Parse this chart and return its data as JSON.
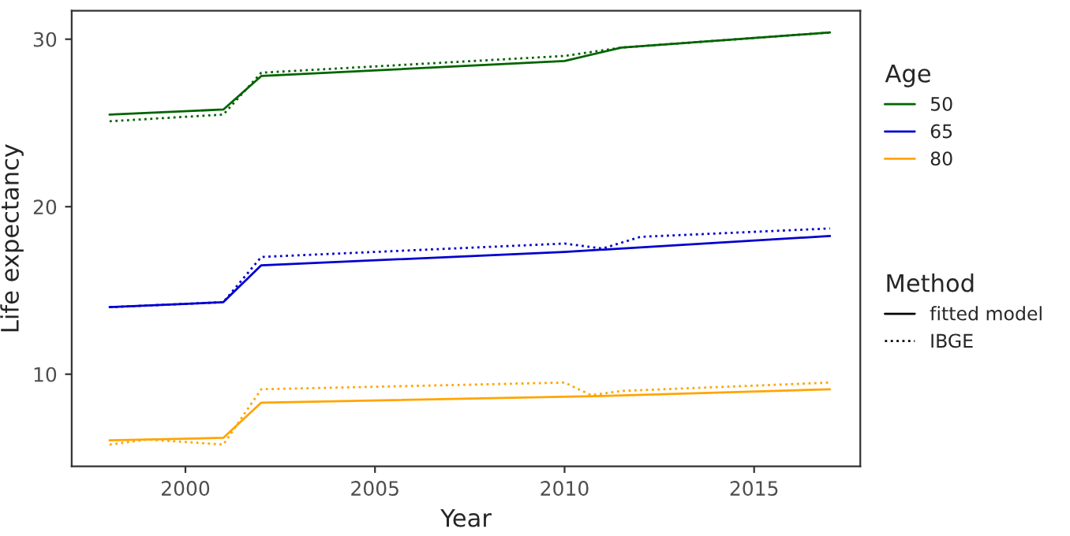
{
  "chart_data": {
    "type": "line",
    "xlabel": "Year",
    "ylabel": "Life expectancy",
    "legend_title": [
      "Age",
      "Method"
    ],
    "legend": "right",
    "grid": false,
    "xlim": [
      1997.0,
      2017.8
    ],
    "xticks": [
      2000,
      2005,
      2010,
      2015
    ],
    "ylim": [
      4.5,
      31.7
    ],
    "yticks": [
      10,
      20,
      30
    ],
    "annotations": [
      "fitted model",
      "IBGE"
    ],
    "series": [
      {
        "name": "50",
        "color": "#006400",
        "line_style": "solid",
        "x": [
          1998,
          2001,
          2002,
          2010,
          2011.5,
          2017
        ],
        "values": [
          25.5,
          25.8,
          27.8,
          28.7,
          29.5,
          30.4
        ]
      },
      {
        "name": "65",
        "color": "#0000cd",
        "line_style": "solid",
        "x": [
          1998,
          2001,
          2002,
          2010,
          2017
        ],
        "values": [
          14.0,
          14.3,
          16.5,
          17.3,
          18.25
        ]
      },
      {
        "name": "80",
        "color": "#ffa500",
        "line_style": "solid",
        "x": [
          1998,
          2001,
          2002,
          2011,
          2017
        ],
        "values": [
          6.05,
          6.2,
          8.3,
          8.7,
          9.1
        ]
      },
      {
        "color": "#006400",
        "line_style": "dotted",
        "x": [
          1998,
          2001,
          2002,
          2010,
          2011.5,
          2017
        ],
        "values": [
          25.1,
          25.5,
          28.0,
          29.0,
          29.5,
          30.4
        ]
      },
      {
        "color": "#0000cd",
        "line_style": "dotted",
        "x": [
          1998,
          2001,
          2002,
          2010,
          2011,
          2012,
          2017
        ],
        "values": [
          14.0,
          14.3,
          17.0,
          17.8,
          17.5,
          18.2,
          18.7
        ]
      },
      {
        "color": "#ffa500",
        "line_style": "dotted",
        "x": [
          1998,
          1999,
          2001,
          2002,
          2010,
          2010.7,
          2011.5,
          2017
        ],
        "values": [
          5.8,
          6.1,
          5.8,
          9.1,
          9.5,
          8.75,
          9.0,
          9.5
        ]
      }
    ]
  }
}
